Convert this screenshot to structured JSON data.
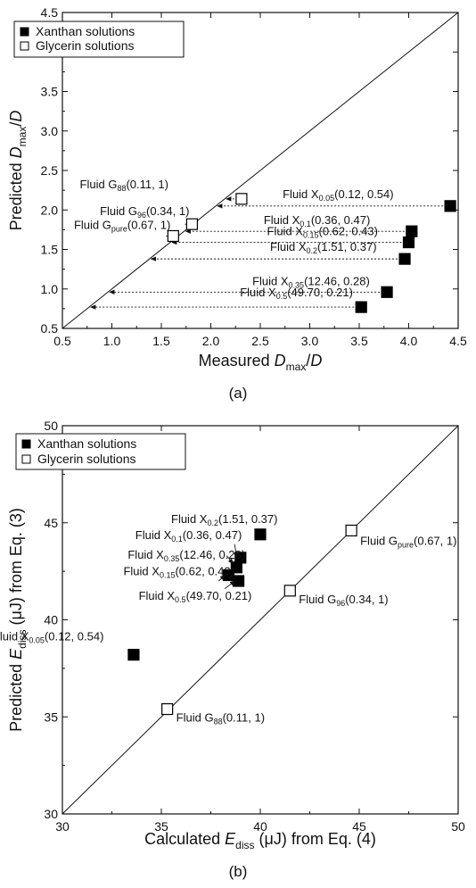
{
  "chart_data": [
    {
      "type": "scatter",
      "caption": "(a)",
      "xlabel": "Measured D_max/D",
      "ylabel": "Predicted D_max/D",
      "xlim": [
        0.5,
        4.5
      ],
      "ylim": [
        0.5,
        4.5
      ],
      "x_ticks": [
        "0.5",
        "1.0",
        "1.5",
        "2.0",
        "2.5",
        "3.0",
        "3.5",
        "4.0",
        "4.5"
      ],
      "y_ticks": [
        "0.5",
        "1.0",
        "1.5",
        "2.0",
        "2.5",
        "3.0",
        "3.5",
        "4.0",
        "4.5"
      ],
      "legend_position": "top-left",
      "diagonal": true,
      "series": [
        {
          "name": "Xanthan solutions",
          "marker": "filled-square",
          "color": "#000000",
          "points": [
            {
              "x": 4.42,
              "y": 2.05,
              "label": "Fluid X",
              "sub": "0.05",
              "params": "(0.12, 0.54)",
              "arrow_to_x": 2.05
            },
            {
              "x": 4.03,
              "y": 1.73,
              "label": "Fluid X",
              "sub": "0.1",
              "params": "(0.36, 0.47)",
              "arrow_to_x": 1.73
            },
            {
              "x": 4.0,
              "y": 1.59,
              "label": "Fluid X",
              "sub": "0.15",
              "params": "(0.62, 0.43)",
              "arrow_to_x": 1.59
            },
            {
              "x": 3.96,
              "y": 1.38,
              "label": "Fluid X",
              "sub": "0.2",
              "params": "(1.51, 0.37)",
              "arrow_to_x": 1.38
            },
            {
              "x": 3.78,
              "y": 0.96,
              "label": "Fluid X",
              "sub": "0.35",
              "params": "(12.46, 0.28)",
              "arrow_to_x": 0.96
            },
            {
              "x": 3.52,
              "y": 0.77,
              "label": "Fluid X",
              "sub": "0.5",
              "params": "(49.70, 0.21)",
              "arrow_to_x": 0.77
            }
          ]
        },
        {
          "name": "Glycerin solutions",
          "marker": "open-square",
          "color": "#000000",
          "points": [
            {
              "x": 2.31,
              "y": 2.14,
              "label": "Fluid G",
              "sub": "88",
              "params": "(0.11, 1)",
              "arrow_to_x": 2.14
            },
            {
              "x": 1.81,
              "y": 1.82,
              "label": "Fluid G",
              "sub": "96",
              "params": "(0.34, 1)",
              "arrow_to_x": 1.82
            },
            {
              "x": 1.62,
              "y": 1.67,
              "label": "Fluid G",
              "sub": "pure",
              "params": "(0.67, 1)",
              "arrow_to_x": 1.62
            }
          ]
        }
      ]
    },
    {
      "type": "scatter",
      "caption": "(b)",
      "xlabel": "Calculated E_diss (μJ) from Eq. (4)",
      "ylabel": "Predicted E_diss (μJ) from Eq. (3)",
      "xlim": [
        30,
        50
      ],
      "ylim": [
        30,
        50
      ],
      "x_ticks": [
        "30",
        "35",
        "40",
        "45",
        "50"
      ],
      "y_ticks": [
        "30",
        "35",
        "40",
        "45",
        "50"
      ],
      "legend_position": "top-left",
      "diagonal": true,
      "series": [
        {
          "name": "Xanthan solutions",
          "marker": "filled-square",
          "color": "#000000",
          "points": [
            {
              "x": 33.6,
              "y": 38.2,
              "label": "Fluid X",
              "sub": "0.05",
              "params": "(0.12, 0.54)"
            },
            {
              "x": 39.0,
              "y": 43.2,
              "label": "Fluid X",
              "sub": "0.1",
              "params": "(0.36, 0.47)"
            },
            {
              "x": 38.4,
              "y": 42.3,
              "label": "Fluid X",
              "sub": "0.15",
              "params": "(0.62, 0.43)"
            },
            {
              "x": 40.0,
              "y": 44.4,
              "label": "Fluid X",
              "sub": "0.2",
              "params": "(1.51, 0.37)"
            },
            {
              "x": 38.8,
              "y": 42.7,
              "label": "Fluid X",
              "sub": "0.35",
              "params": "(12.46, 0.28)"
            },
            {
              "x": 38.9,
              "y": 42.0,
              "label": "Fluid X",
              "sub": "0.5",
              "params": "(49.70, 0.21)"
            }
          ]
        },
        {
          "name": "Glycerin solutions",
          "marker": "open-square",
          "color": "#000000",
          "points": [
            {
              "x": 44.6,
              "y": 44.6,
              "label": "Fluid G",
              "sub": "pure",
              "params": "(0.67, 1)"
            },
            {
              "x": 41.5,
              "y": 41.5,
              "label": "Fluid G",
              "sub": "96",
              "params": "(0.34, 1)"
            },
            {
              "x": 35.3,
              "y": 35.4,
              "label": "Fluid G",
              "sub": "88",
              "params": "(0.11, 1)"
            }
          ]
        }
      ]
    }
  ]
}
